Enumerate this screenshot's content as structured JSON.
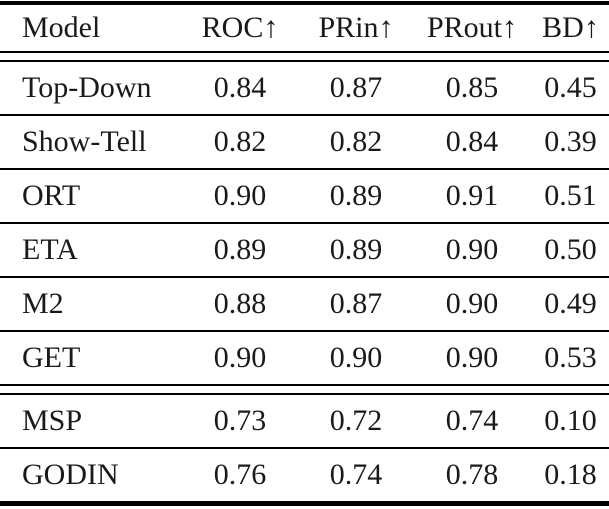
{
  "table": {
    "columns": {
      "model": "Model",
      "roc": "ROC↑",
      "prin": "PRin↑",
      "prout": "PRout↑",
      "bd": "BD↑"
    },
    "groups": [
      {
        "rows": [
          [
            "Top-Down",
            "0.84",
            "0.87",
            "0.85",
            "0.45"
          ],
          [
            "Show-Tell",
            "0.82",
            "0.82",
            "0.84",
            "0.39"
          ],
          [
            "ORT",
            "0.90",
            "0.89",
            "0.91",
            "0.51"
          ],
          [
            "ETA",
            "0.89",
            "0.89",
            "0.90",
            "0.50"
          ],
          [
            "M2",
            "0.88",
            "0.87",
            "0.90",
            "0.49"
          ],
          [
            "GET",
            "0.90",
            "0.90",
            "0.90",
            "0.53"
          ]
        ]
      },
      {
        "rows": [
          [
            "MSP",
            "0.73",
            "0.72",
            "0.74",
            "0.10"
          ],
          [
            "GODIN",
            "0.76",
            "0.74",
            "0.78",
            "0.18"
          ]
        ]
      }
    ],
    "colors": {
      "text": "#1a1a1a",
      "rule": "#000000",
      "background": "#ffffff"
    }
  }
}
